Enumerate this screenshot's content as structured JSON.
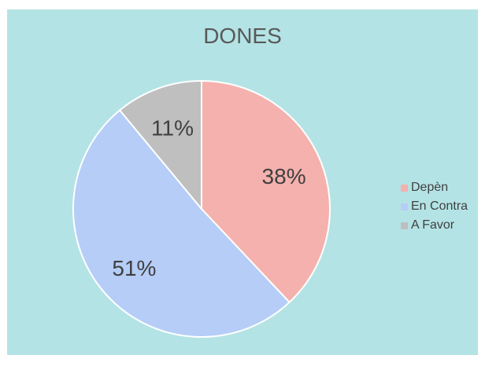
{
  "chart_data": {
    "type": "pie",
    "title": "DONES",
    "categories": [
      "Depèn",
      "En Contra",
      "A Favor"
    ],
    "values": [
      38,
      51,
      11
    ],
    "labels": [
      "38%",
      "51%",
      "11%"
    ],
    "colors": [
      "#f4b1ad",
      "#b5cdf7",
      "#bfbfbf"
    ],
    "legend": "right",
    "start_angle_deg": 0,
    "direction": "clockwise"
  }
}
